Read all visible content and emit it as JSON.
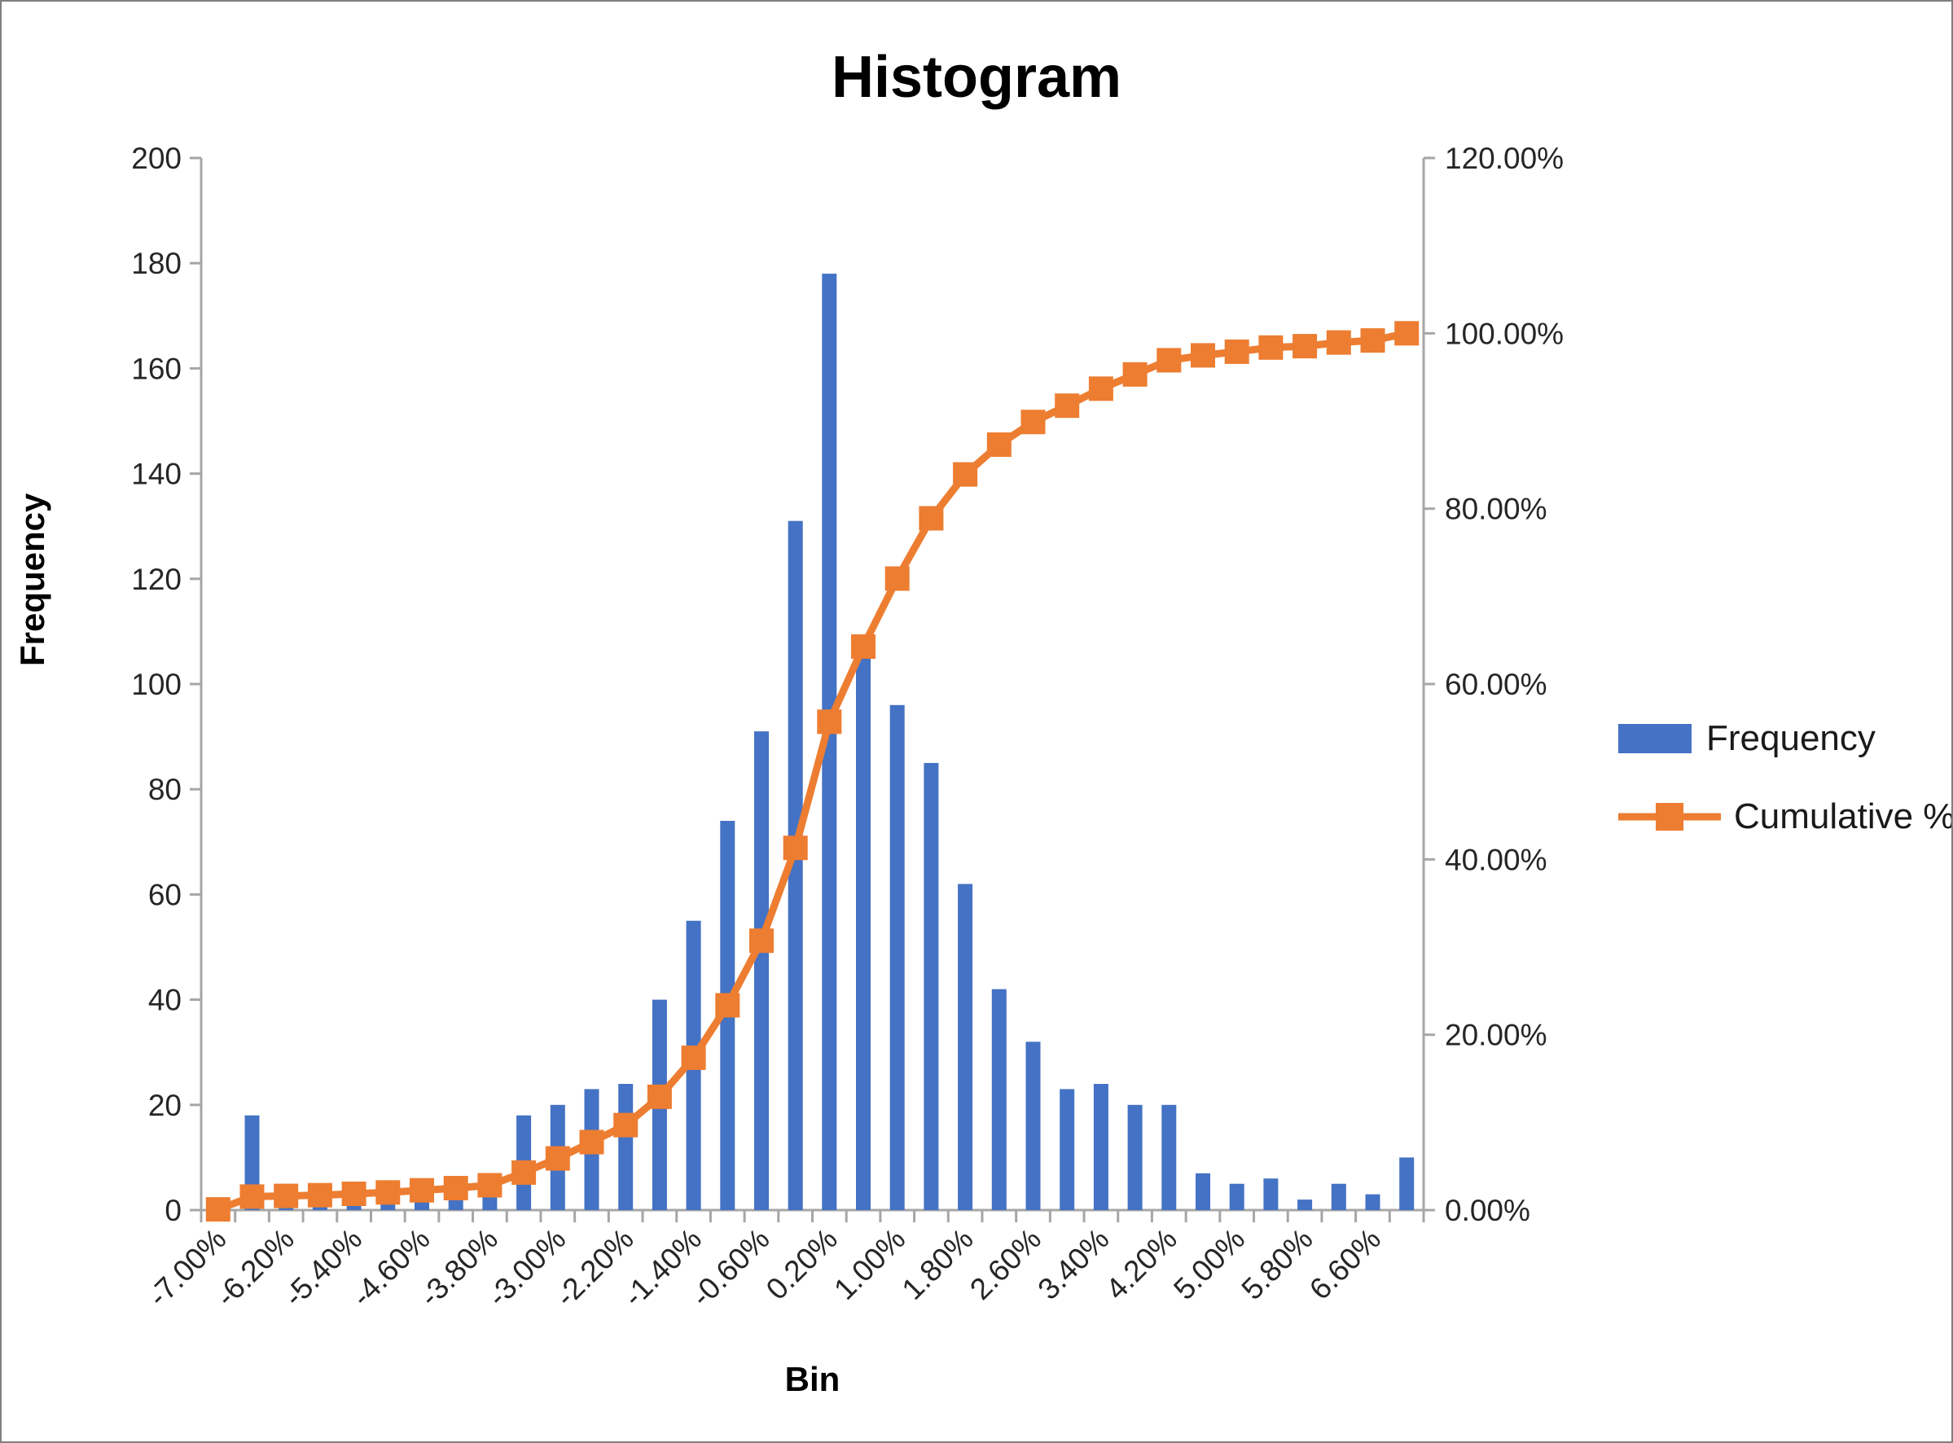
{
  "chart_data": {
    "type": "combo-histogram-pareto",
    "title": "Histogram",
    "categories": [
      "-7.00%",
      "-6.60%",
      "-6.20%",
      "-5.80%",
      "-5.40%",
      "-5.00%",
      "-4.60%",
      "-4.20%",
      "-3.80%",
      "-3.40%",
      "-3.00%",
      "-2.60%",
      "-2.20%",
      "-1.80%",
      "-1.40%",
      "-1.00%",
      "-0.60%",
      "-0.20%",
      "0.20%",
      "0.60%",
      "1.00%",
      "1.40%",
      "1.80%",
      "2.20%",
      "2.60%",
      "3.00%",
      "3.40%",
      "3.80%",
      "4.20%",
      "4.60%",
      "5.00%",
      "5.40%",
      "5.80%",
      "6.20%",
      "6.60%",
      "7.00%"
    ],
    "series": [
      {
        "name": "Frequency",
        "type": "bar",
        "color": "#4472C4",
        "values": [
          1,
          18,
          1,
          1,
          2,
          2,
          3,
          3,
          4,
          18,
          20,
          23,
          24,
          40,
          55,
          74,
          91,
          131,
          178,
          106,
          96,
          85,
          62,
          42,
          32,
          23,
          24,
          20,
          20,
          7,
          5,
          6,
          2,
          5,
          3,
          10
        ]
      },
      {
        "name": "Cumulative %",
        "type": "line",
        "color": "#ED7D31",
        "marker": "square",
        "values": [
          0.08,
          1.54,
          1.62,
          1.7,
          1.86,
          2.02,
          2.26,
          2.51,
          2.83,
          4.28,
          5.9,
          7.76,
          9.7,
          12.93,
          17.38,
          23.36,
          30.72,
          41.31,
          55.7,
          64.27,
          72.03,
          78.9,
          83.91,
          87.31,
          89.89,
          91.75,
          93.69,
          95.31,
          96.93,
          97.49,
          97.9,
          98.38,
          98.54,
          98.95,
          99.19,
          100.0
        ]
      }
    ],
    "x_axis": {
      "title": "Bin",
      "label_interval": 2,
      "shown_labels": [
        "-7.00%",
        "-6.20%",
        "-5.40%",
        "-4.60%",
        "-3.80%",
        "-3.00%",
        "-2.20%",
        "-1.40%",
        "-0.60%",
        "0.20%",
        "1.00%",
        "1.80%",
        "2.60%",
        "3.40%",
        "4.20%",
        "5.00%",
        "5.80%",
        "6.60%"
      ]
    },
    "y_axis_left": {
      "title": "Frequency",
      "min": 0,
      "max": 200,
      "step": 20,
      "tick_labels": [
        "0",
        "20",
        "40",
        "60",
        "80",
        "100",
        "120",
        "140",
        "160",
        "180",
        "200"
      ]
    },
    "y_axis_right": {
      "min": 0,
      "max": 120,
      "step": 20,
      "tick_labels": [
        "0.00%",
        "20.00%",
        "40.00%",
        "60.00%",
        "80.00%",
        "100.00%",
        "120.00%"
      ]
    },
    "legend": {
      "position": "right",
      "entries": [
        {
          "label": "Frequency"
        },
        {
          "label": "Cumulative %"
        }
      ]
    },
    "grid": "off",
    "plot_background": "#ffffff"
  }
}
